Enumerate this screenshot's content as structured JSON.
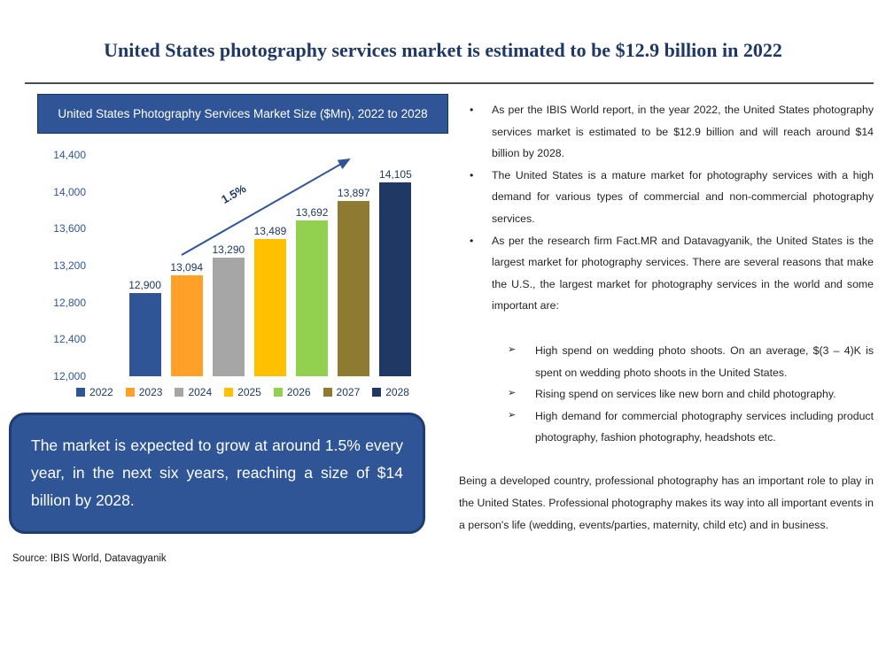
{
  "page": {
    "title": "United States photography services market is estimated to be $12.9 billion in 2022"
  },
  "chart_data": {
    "type": "bar",
    "title": "United States Photography Services Market Size ($Mn), 2022 to 2028",
    "categories": [
      "2022",
      "2023",
      "2024",
      "2025",
      "2026",
      "2027",
      "2028"
    ],
    "values": [
      12900,
      13094,
      13290,
      13489,
      13692,
      13897,
      14105
    ],
    "value_labels": [
      "12,900",
      "13,094",
      "13,290",
      "13,489",
      "13,692",
      "13,897",
      "14,105"
    ],
    "bar_colors": [
      "#2F5597",
      "#FFA028",
      "#A6A6A6",
      "#FFC000",
      "#92D050",
      "#8E7A30",
      "#1F3864"
    ],
    "ylim": [
      12000,
      14400
    ],
    "yticks": [
      12000,
      12400,
      12800,
      13200,
      13600,
      14000,
      14400
    ],
    "ytick_labels": [
      "12,000",
      "12,400",
      "12,800",
      "13,200",
      "13,600",
      "14,000",
      "14,400"
    ],
    "growth_annotation": "1.5%",
    "legend_position": "bottom",
    "grid": false
  },
  "callout": {
    "text": "The market is expected to grow at around 1.5% every year, in the next six years, reaching a size of $14 billion by 2028."
  },
  "source_note": "Source: IBIS World, Datavagyanik",
  "right_panel": {
    "bullet_marker": "•",
    "sub_bullet_marker": "➢",
    "bullets": [
      "As per the IBIS World report, in the year 2022, the United States photography services market is estimated to be $12.9 billion and will reach around $14 billion by 2028.",
      "The United States is a mature market for photography services with a high demand for various types of commercial and non-commercial photography services.",
      "As per the research firm Fact.MR and Datavagyanik, the United States is the largest market for photography services. There are several reasons that make the U.S., the largest market for photography services in the world and some important are:"
    ],
    "sub_bullets": [
      "High spend on wedding photo shoots. On an average, $(3 – 4)K is spent on wedding photo shoots in the United States.",
      "Rising spend on services like new born and child photography.",
      "High demand for commercial photography services including product photography, fashion photography, headshots etc."
    ],
    "closing_paragraph": "Being a developed country, professional photography has an important role to play in the United States. Professional photography makes its way into all important events in a person's life (wedding, events/parties, maternity, child etc) and in business."
  },
  "colors": {
    "accent_blue": "#2F5597",
    "dark_navy": "#1F3864"
  }
}
